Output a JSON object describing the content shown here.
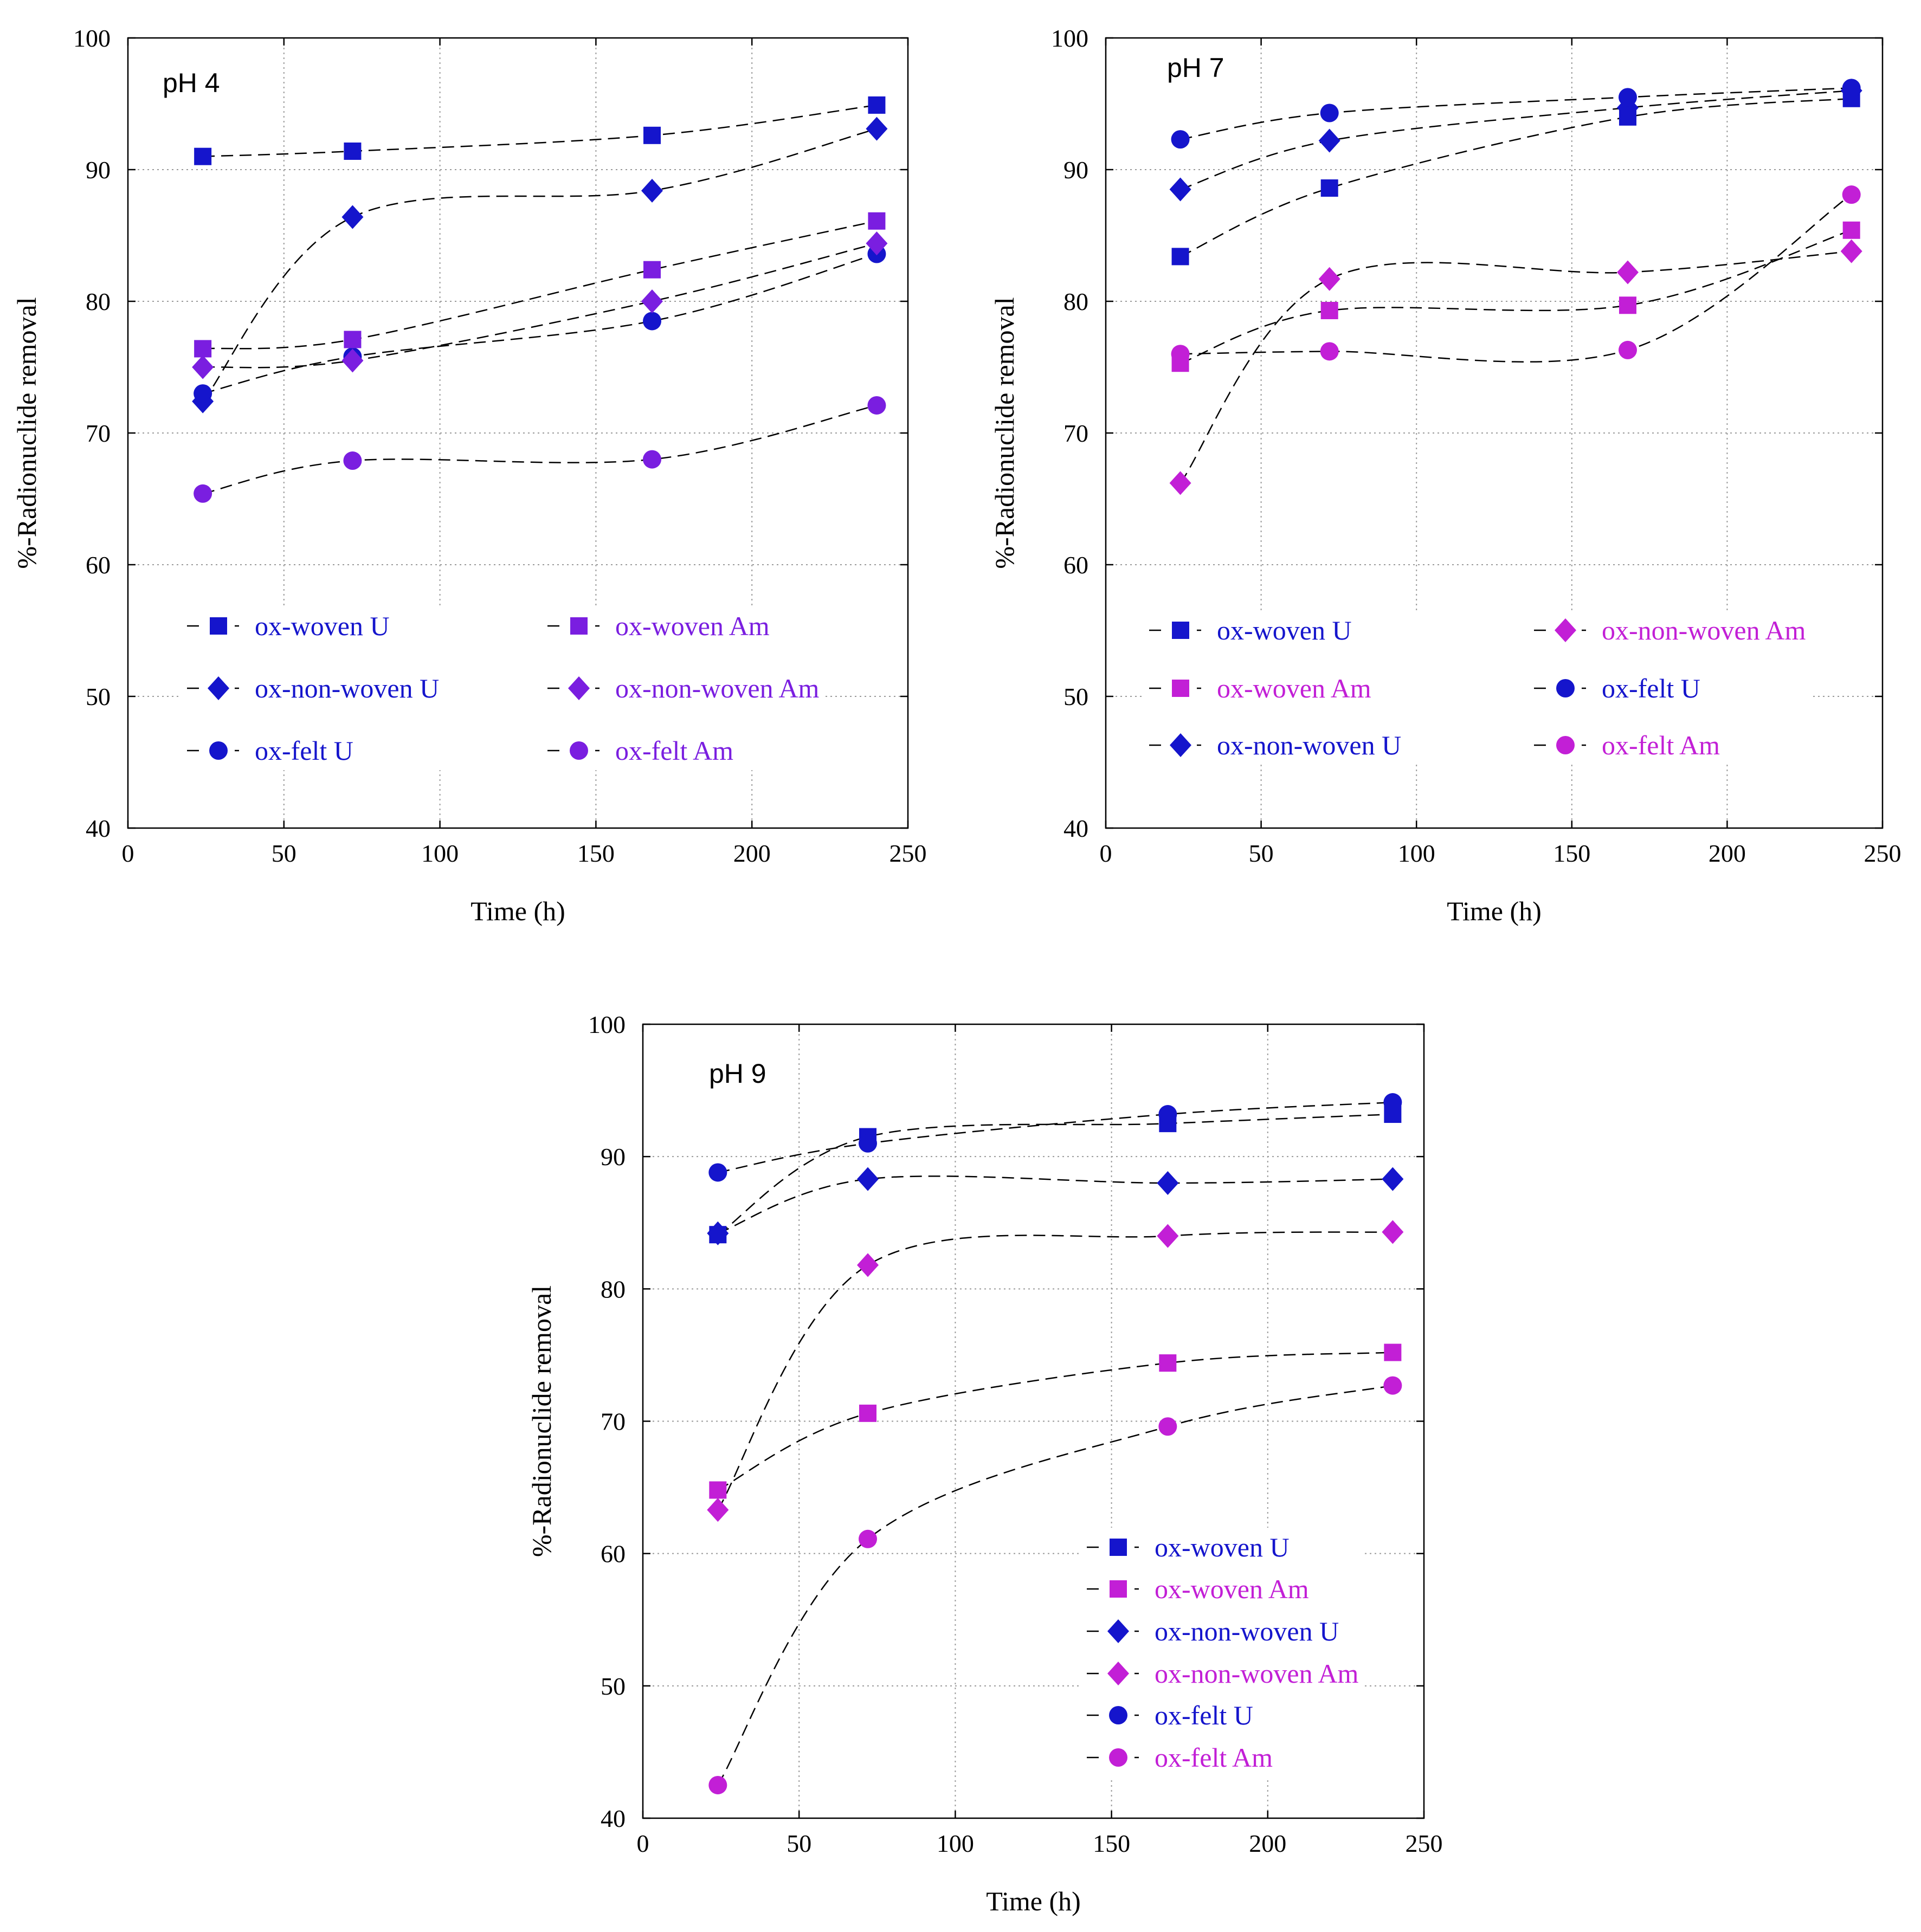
{
  "chart_data": [
    {
      "type": "line",
      "title": "pH 4",
      "xlabel": "Time (h)",
      "ylabel": "%-Radionuclide removal",
      "xlim": [
        0,
        250
      ],
      "ylim": [
        40,
        100
      ],
      "xticks": [
        0,
        50,
        100,
        150,
        200,
        250
      ],
      "yticks": [
        40,
        50,
        60,
        70,
        80,
        90,
        100
      ],
      "grid": true,
      "legend_position": "bottom, two columns",
      "x": [
        24,
        72,
        168,
        240
      ],
      "series": [
        {
          "name": "ox-woven U",
          "marker": "square",
          "color": "#1515cc",
          "values": [
            91.0,
            91.4,
            92.6,
            94.9
          ]
        },
        {
          "name": "ox-non-woven U",
          "marker": "diamond",
          "color": "#1515cc",
          "values": [
            72.4,
            86.4,
            88.4,
            93.1
          ]
        },
        {
          "name": "ox-felt U",
          "marker": "circle",
          "color": "#1515cc",
          "values": [
            73.0,
            75.8,
            78.5,
            83.6
          ]
        },
        {
          "name": "ox-woven Am",
          "marker": "square",
          "color": "#7a1ee0",
          "values": [
            76.4,
            77.1,
            82.4,
            86.1
          ]
        },
        {
          "name": "ox-non-woven Am",
          "marker": "diamond",
          "color": "#7a1ee0",
          "values": [
            75.0,
            75.5,
            80.0,
            84.4
          ]
        },
        {
          "name": "ox-felt Am",
          "marker": "circle",
          "color": "#7a1ee0",
          "values": [
            65.4,
            67.9,
            68.0,
            72.1
          ]
        }
      ]
    },
    {
      "type": "line",
      "title": "pH 7",
      "xlabel": "Time (h)",
      "ylabel": "%-Radionuclide removal",
      "xlim": [
        0,
        250
      ],
      "ylim": [
        40,
        100
      ],
      "xticks": [
        0,
        50,
        100,
        150,
        200,
        250
      ],
      "yticks": [
        40,
        50,
        60,
        70,
        80,
        90,
        100
      ],
      "grid": true,
      "legend_position": "bottom, two columns",
      "x": [
        24,
        72,
        168,
        240
      ],
      "series": [
        {
          "name": "ox-woven U",
          "marker": "square",
          "color": "#1515cc",
          "values": [
            83.4,
            88.6,
            94.0,
            95.4
          ]
        },
        {
          "name": "ox-woven Am",
          "marker": "square",
          "color": "#c21fd6",
          "values": [
            75.3,
            79.3,
            79.7,
            85.4
          ]
        },
        {
          "name": "ox-non-woven U",
          "marker": "diamond",
          "color": "#1515cc",
          "values": [
            88.5,
            92.2,
            94.7,
            96.0
          ]
        },
        {
          "name": "ox-non-woven Am",
          "marker": "diamond",
          "color": "#c21fd6",
          "values": [
            66.2,
            81.7,
            82.2,
            83.8
          ]
        },
        {
          "name": "ox-felt U",
          "marker": "circle",
          "color": "#1515cc",
          "values": [
            92.3,
            94.3,
            95.5,
            96.2
          ]
        },
        {
          "name": "ox-felt Am",
          "marker": "circle",
          "color": "#c21fd6",
          "values": [
            76.0,
            76.2,
            76.3,
            88.1
          ]
        }
      ]
    },
    {
      "type": "line",
      "title": "pH 9",
      "xlabel": "Time (h)",
      "ylabel": "%-Radionuclide removal",
      "xlim": [
        0,
        250
      ],
      "ylim": [
        40,
        100
      ],
      "xticks": [
        0,
        50,
        100,
        150,
        200,
        250
      ],
      "yticks": [
        40,
        50,
        60,
        70,
        80,
        90,
        100
      ],
      "grid": true,
      "legend_position": "bottom-right, single column",
      "x": [
        24,
        72,
        168,
        240
      ],
      "series": [
        {
          "name": "ox-woven U",
          "marker": "square",
          "color": "#1515cc",
          "values": [
            84.1,
            91.5,
            92.5,
            93.2
          ]
        },
        {
          "name": "ox-woven Am",
          "marker": "square",
          "color": "#c21fd6",
          "values": [
            64.8,
            70.6,
            74.4,
            75.2
          ]
        },
        {
          "name": "ox-non-woven U",
          "marker": "diamond",
          "color": "#1515cc",
          "values": [
            84.2,
            88.3,
            88.0,
            88.3
          ]
        },
        {
          "name": "ox-non-woven Am",
          "marker": "diamond",
          "color": "#c21fd6",
          "values": [
            63.3,
            81.8,
            84.0,
            84.3
          ]
        },
        {
          "name": "ox-felt U",
          "marker": "circle",
          "color": "#1515cc",
          "values": [
            88.8,
            91.0,
            93.2,
            94.1
          ]
        },
        {
          "name": "ox-felt Am",
          "marker": "circle",
          "color": "#c21fd6",
          "values": [
            42.5,
            61.1,
            69.6,
            72.7
          ]
        }
      ]
    }
  ]
}
